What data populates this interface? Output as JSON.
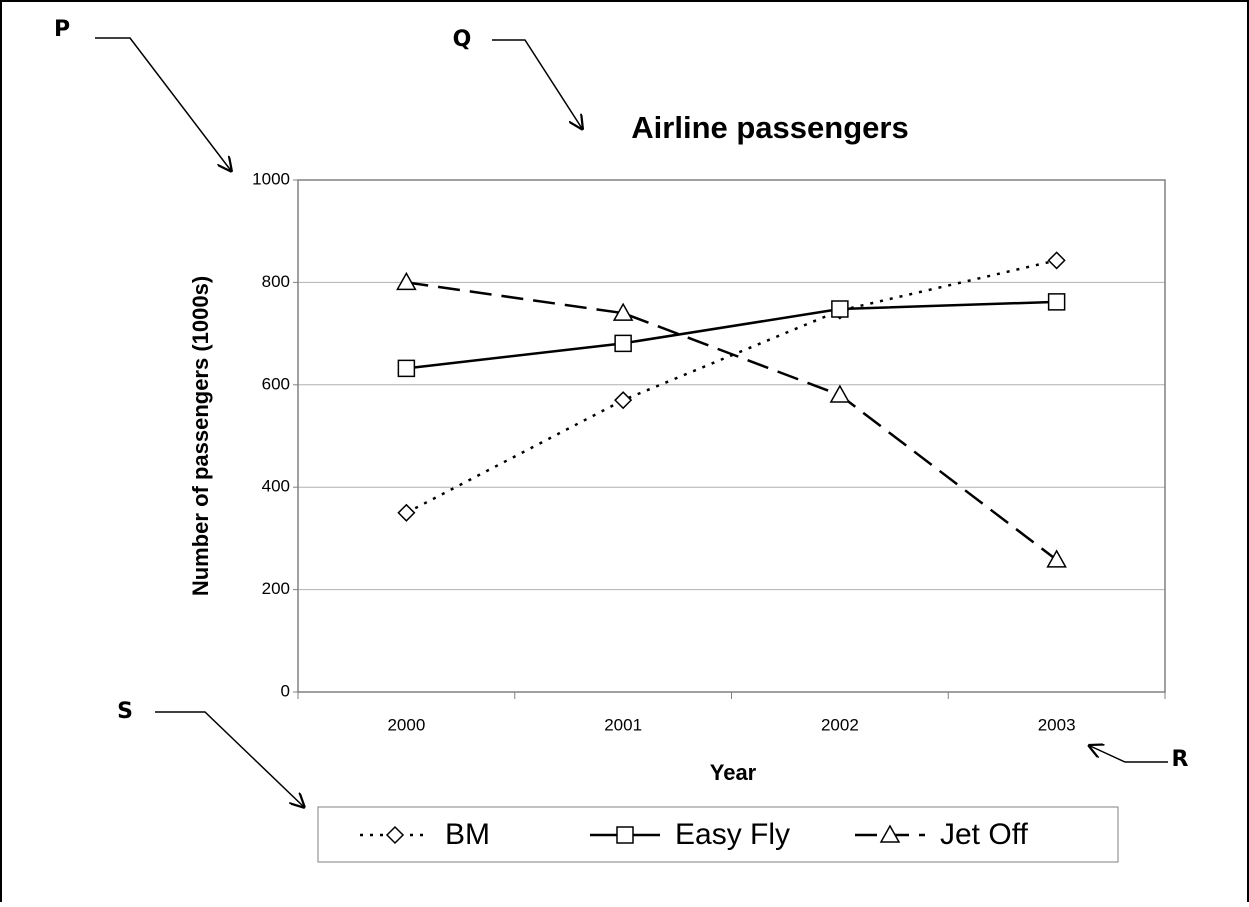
{
  "chart_data": {
    "type": "line",
    "title": "Airline passengers",
    "x_label": "Year",
    "y_label": "Number of passengers (1000s)",
    "categories": [
      "2000",
      "2001",
      "2002",
      "2003"
    ],
    "series": [
      {
        "name": "BM",
        "color": "#000000",
        "line_style": "dotted",
        "marker": "diamond",
        "values": [
          350,
          570,
          745,
          843
        ]
      },
      {
        "name": "Easy Fly",
        "color": "#000000",
        "line_style": "solid",
        "marker": "square",
        "values": [
          632,
          681,
          748,
          762
        ]
      },
      {
        "name": "Jet Off",
        "color": "#000000",
        "line_style": "dashed",
        "marker": "triangle",
        "values": [
          800,
          740,
          580,
          258
        ]
      }
    ],
    "ylim": [
      0,
      1000
    ],
    "yticks": [
      0,
      200,
      400,
      600,
      800,
      1000
    ],
    "grid": true,
    "legend": "bottom",
    "annotations": [
      "P",
      "Q",
      "R",
      "S"
    ]
  }
}
